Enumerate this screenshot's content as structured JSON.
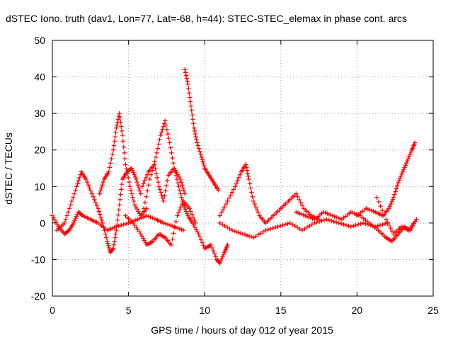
{
  "chart_data": {
    "type": "scatter",
    "title": "dSTEC Iono. truth (dav1, Lon=77, Lat=-68, h=44): STEC-STEC_elemax in phase cont. arcs",
    "xlabel": "GPS time / hours of day 012 of year 2015",
    "ylabel": "dSTEC  / TECUs",
    "xlim": [
      0,
      25
    ],
    "ylim": [
      -20,
      50
    ],
    "xticks": [
      0,
      5,
      10,
      15,
      20,
      25
    ],
    "yticks": [
      -20,
      -10,
      0,
      10,
      20,
      30,
      40,
      50
    ],
    "grid": true,
    "marker": "+",
    "color": "#ff0000",
    "series": [
      {
        "points": [
          [
            0.0,
            2
          ],
          [
            0.4,
            -1
          ],
          [
            0.8,
            -3
          ],
          [
            1.1,
            -2
          ],
          [
            1.4,
            0
          ],
          [
            1.7,
            3
          ],
          [
            2.0,
            2
          ],
          [
            2.5,
            1
          ],
          [
            3.0,
            0
          ],
          [
            3.6,
            -2
          ],
          [
            4.2,
            -1
          ],
          [
            5.0,
            0
          ],
          [
            5.6,
            1
          ],
          [
            6.2,
            2
          ],
          [
            6.8,
            1
          ],
          [
            7.3,
            0
          ],
          [
            8.0,
            -1
          ],
          [
            8.6,
            -2
          ]
        ]
      },
      {
        "points": [
          [
            0.3,
            -2
          ],
          [
            0.8,
            0
          ],
          [
            1.2,
            5
          ],
          [
            1.6,
            10
          ],
          [
            1.9,
            14
          ],
          [
            2.2,
            12
          ],
          [
            2.6,
            8
          ],
          [
            3.0,
            4
          ],
          [
            3.3,
            0
          ],
          [
            3.6,
            -5
          ],
          [
            3.8,
            -8
          ],
          [
            4.0,
            -7
          ],
          [
            4.2,
            -2
          ],
          [
            4.4,
            5
          ],
          [
            4.6,
            12
          ],
          [
            4.9,
            14
          ],
          [
            5.2,
            15
          ],
          [
            5.5,
            12
          ],
          [
            5.8,
            8
          ]
        ]
      },
      {
        "points": [
          [
            3.1,
            8
          ],
          [
            3.4,
            12
          ],
          [
            3.7,
            14
          ],
          [
            4.0,
            20
          ],
          [
            4.2,
            26
          ],
          [
            4.4,
            30
          ],
          [
            4.6,
            24
          ],
          [
            4.8,
            16
          ],
          [
            5.1,
            10
          ],
          [
            5.4,
            5
          ],
          [
            5.8,
            2
          ],
          [
            6.2,
            4
          ]
        ]
      },
      {
        "points": [
          [
            6.0,
            4
          ],
          [
            6.4,
            12
          ],
          [
            6.8,
            18
          ],
          [
            7.1,
            24
          ],
          [
            7.4,
            28
          ],
          [
            7.7,
            22
          ],
          [
            8.0,
            15
          ],
          [
            8.3,
            10
          ],
          [
            8.6,
            5
          ],
          [
            8.9,
            2
          ],
          [
            9.2,
            0
          ],
          [
            9.6,
            -3
          ],
          [
            10.0,
            -7
          ],
          [
            10.4,
            -6
          ],
          [
            10.8,
            -10
          ],
          [
            11.0,
            -11
          ],
          [
            11.3,
            -8
          ],
          [
            11.5,
            -6
          ]
        ]
      },
      {
        "points": [
          [
            8.7,
            42
          ],
          [
            8.9,
            38
          ],
          [
            9.1,
            32
          ],
          [
            9.3,
            26
          ],
          [
            9.5,
            22
          ],
          [
            9.8,
            18
          ],
          [
            10.0,
            15
          ],
          [
            10.3,
            13
          ],
          [
            10.6,
            11
          ],
          [
            10.9,
            9
          ]
        ]
      },
      {
        "points": [
          [
            4.8,
            2
          ],
          [
            5.3,
            0
          ],
          [
            5.8,
            -3
          ],
          [
            6.2,
            -6
          ],
          [
            6.6,
            -5
          ],
          [
            7.0,
            -3
          ],
          [
            7.4,
            -4
          ],
          [
            7.8,
            -6
          ],
          [
            8.2,
            2
          ],
          [
            8.6,
            6
          ],
          [
            9.0,
            4
          ],
          [
            9.4,
            0
          ]
        ]
      },
      {
        "points": [
          [
            5.9,
            10
          ],
          [
            6.3,
            14
          ],
          [
            6.7,
            16
          ],
          [
            7.0,
            10
          ],
          [
            7.3,
            6
          ],
          [
            7.6,
            13
          ],
          [
            8.0,
            15
          ],
          [
            8.4,
            12
          ],
          [
            8.7,
            8
          ]
        ]
      },
      {
        "points": [
          [
            11.0,
            2
          ],
          [
            11.5,
            6
          ],
          [
            12.0,
            10
          ],
          [
            12.4,
            14
          ],
          [
            12.7,
            16
          ],
          [
            12.9,
            12
          ],
          [
            13.2,
            6
          ],
          [
            13.6,
            2
          ],
          [
            14.0,
            0
          ],
          [
            14.5,
            2
          ],
          [
            15.0,
            4
          ],
          [
            15.5,
            6
          ],
          [
            16.0,
            8
          ],
          [
            16.5,
            4
          ],
          [
            17.0,
            2
          ],
          [
            17.5,
            1
          ]
        ]
      },
      {
        "points": [
          [
            11.0,
            0
          ],
          [
            11.8,
            -2
          ],
          [
            12.5,
            -3
          ],
          [
            13.2,
            -4
          ],
          [
            14.0,
            -2
          ],
          [
            14.8,
            -1
          ],
          [
            15.6,
            0
          ],
          [
            16.4,
            -2
          ],
          [
            17.2,
            0
          ],
          [
            18.0,
            1
          ],
          [
            18.8,
            0
          ],
          [
            19.6,
            -1
          ],
          [
            20.4,
            0
          ],
          [
            21.2,
            -1
          ],
          [
            22.0,
            0
          ]
        ]
      },
      {
        "points": [
          [
            16.0,
            3
          ],
          [
            16.6,
            2
          ],
          [
            17.2,
            1
          ],
          [
            17.8,
            3
          ],
          [
            18.4,
            2
          ],
          [
            19.0,
            1
          ],
          [
            19.6,
            3
          ],
          [
            20.2,
            2
          ],
          [
            20.8,
            0
          ],
          [
            21.4,
            -2
          ],
          [
            21.9,
            -4
          ],
          [
            22.3,
            -5
          ],
          [
            22.7,
            -3
          ],
          [
            23.1,
            -1
          ],
          [
            23.5,
            -2
          ],
          [
            23.9,
            1
          ]
        ]
      },
      {
        "points": [
          [
            20.0,
            2
          ],
          [
            20.6,
            4
          ],
          [
            21.2,
            3
          ],
          [
            21.7,
            2
          ],
          [
            22.1,
            4
          ],
          [
            22.4,
            7
          ],
          [
            22.7,
            11
          ],
          [
            23.0,
            14
          ],
          [
            23.3,
            17
          ],
          [
            23.6,
            20
          ],
          [
            23.8,
            22
          ]
        ]
      },
      {
        "points": [
          [
            21.3,
            7
          ],
          [
            21.9,
            1
          ],
          [
            22.4,
            -3
          ],
          [
            22.9,
            -1
          ],
          [
            23.4,
            -2
          ],
          [
            23.9,
            1
          ]
        ]
      }
    ]
  }
}
